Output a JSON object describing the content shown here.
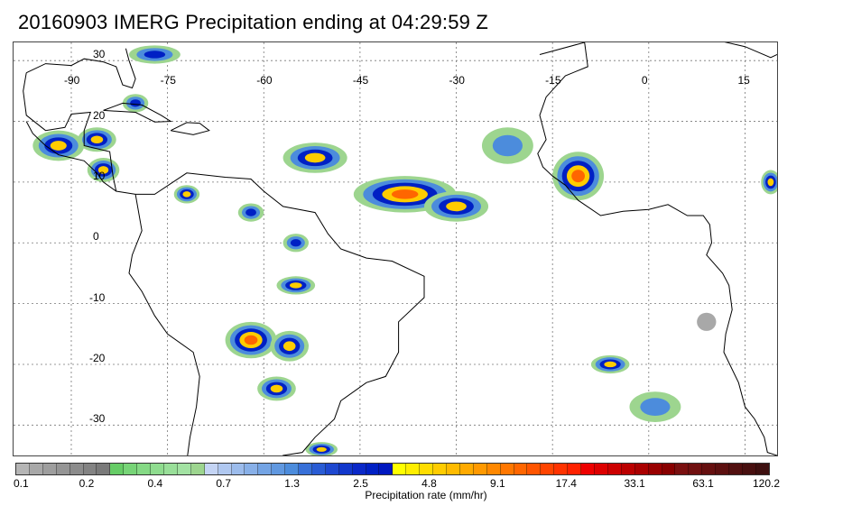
{
  "title": "20160903 IMERG Precipitation ending at 04:29:59 Z",
  "map": {
    "longitude_labels": [
      "-90",
      "-75",
      "-60",
      "-45",
      "-30",
      "-15",
      "0",
      "15"
    ],
    "latitude_labels": [
      "30",
      "20",
      "10",
      "0",
      "-10",
      "-20",
      "-30"
    ],
    "lon_range": [
      -99,
      20
    ],
    "lat_range": [
      -35,
      33
    ],
    "grid": "dotted",
    "land_outline_color": "#000000",
    "precip_cells": [
      {
        "lon": -92,
        "lat": 16,
        "rx": 4,
        "ry": 2.5,
        "level": 3
      },
      {
        "lon": -86,
        "lat": 17,
        "rx": 3,
        "ry": 2,
        "level": 3
      },
      {
        "lon": -85,
        "lat": 12,
        "rx": 2.5,
        "ry": 2,
        "level": 3
      },
      {
        "lon": -80,
        "lat": 23,
        "rx": 2,
        "ry": 1.5,
        "level": 2
      },
      {
        "lon": -77,
        "lat": 31,
        "rx": 4,
        "ry": 1.5,
        "level": 2
      },
      {
        "lon": -72,
        "lat": 8,
        "rx": 2,
        "ry": 1.5,
        "level": 3
      },
      {
        "lon": -62,
        "lat": 5,
        "rx": 2,
        "ry": 1.5,
        "level": 2
      },
      {
        "lon": -55,
        "lat": 0,
        "rx": 2,
        "ry": 1.5,
        "level": 2
      },
      {
        "lon": -52,
        "lat": 14,
        "rx": 5,
        "ry": 2.5,
        "level": 3
      },
      {
        "lon": -38,
        "lat": 8,
        "rx": 8,
        "ry": 3,
        "level": 4
      },
      {
        "lon": -30,
        "lat": 6,
        "rx": 5,
        "ry": 2.5,
        "level": 3
      },
      {
        "lon": -22,
        "lat": 16,
        "rx": 4,
        "ry": 3,
        "level": 1
      },
      {
        "lon": -11,
        "lat": 11,
        "rx": 4,
        "ry": 4,
        "level": 4
      },
      {
        "lon": -55,
        "lat": -7,
        "rx": 3,
        "ry": 1.5,
        "level": 3
      },
      {
        "lon": -62,
        "lat": -16,
        "rx": 4,
        "ry": 3,
        "level": 4
      },
      {
        "lon": -56,
        "lat": -17,
        "rx": 3,
        "ry": 2.5,
        "level": 3
      },
      {
        "lon": -58,
        "lat": -24,
        "rx": 3,
        "ry": 2,
        "level": 3
      },
      {
        "lon": -51,
        "lat": -34,
        "rx": 2.5,
        "ry": 1.2,
        "level": 3
      },
      {
        "lon": -6,
        "lat": -20,
        "rx": 3,
        "ry": 1.5,
        "level": 3
      },
      {
        "lon": 1,
        "lat": -27,
        "rx": 4,
        "ry": 2.5,
        "level": 1
      },
      {
        "lon": 19,
        "lat": 10,
        "rx": 1.5,
        "ry": 2,
        "level": 3
      },
      {
        "lon": 9,
        "lat": -13,
        "rx": 1.5,
        "ry": 1.5,
        "level": 0
      }
    ]
  },
  "colorbar": {
    "label": "Precipitation rate (mm/hr)",
    "tick_labels": [
      "0.1",
      "0.2",
      "0.4",
      "0.7",
      "1.3",
      "2.5",
      "4.8",
      "9.1",
      "17.4",
      "33.1",
      "63.1",
      "120.2"
    ],
    "colors": [
      "#b5b5b5",
      "#a8a8a8",
      "#9e9e9e",
      "#959595",
      "#8c8c8c",
      "#838383",
      "#7a7a7a",
      "#66cc66",
      "#77d477",
      "#85d985",
      "#8fdc8f",
      "#99df99",
      "#a3e2a3",
      "#9dd58f",
      "#c4d4f4",
      "#b0c8f0",
      "#9cbcec",
      "#88b0e8",
      "#74a4e4",
      "#6098e0",
      "#4c8cdc",
      "#3870d8",
      "#2a5cd4",
      "#1e48d0",
      "#1238cc",
      "#0a28c8",
      "#0020c4",
      "#0018c0",
      "#ffff00",
      "#ffee00",
      "#ffdd00",
      "#ffcc00",
      "#ffbb00",
      "#ffaa00",
      "#ff9900",
      "#ff8800",
      "#ff7700",
      "#ff6600",
      "#ff5500",
      "#ff4400",
      "#ff3300",
      "#ff2200",
      "#ee0000",
      "#dd0000",
      "#cc0000",
      "#bb0000",
      "#aa0000",
      "#990000",
      "#880000",
      "#7a1010",
      "#701010",
      "#661010",
      "#5c1010",
      "#521010",
      "#481010",
      "#3e1010"
    ]
  }
}
